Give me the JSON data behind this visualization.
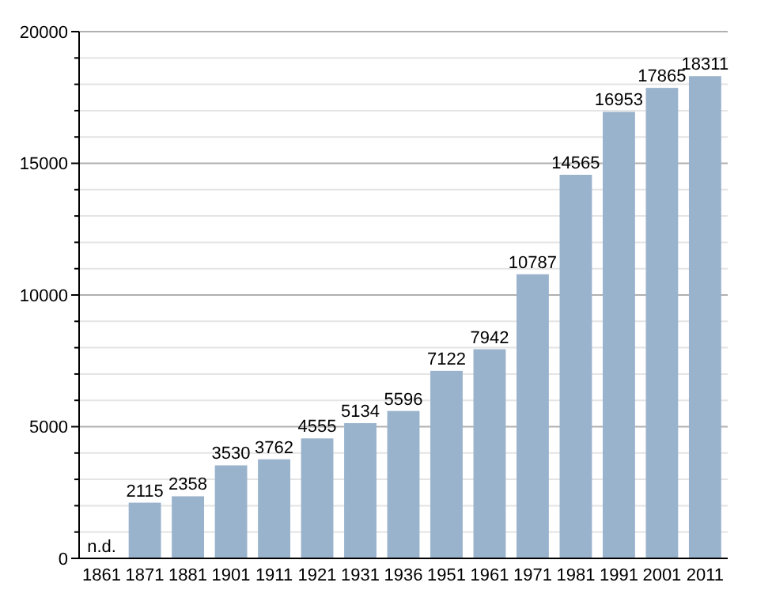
{
  "chart_data": {
    "type": "bar",
    "categories": [
      "1861",
      "1871",
      "1881",
      "1901",
      "1911",
      "1921",
      "1931",
      "1936",
      "1951",
      "1961",
      "1971",
      "1981",
      "1991",
      "2001",
      "2011"
    ],
    "values": [
      null,
      2115,
      2358,
      3530,
      3762,
      4555,
      5134,
      5596,
      7122,
      7942,
      10787,
      14565,
      16953,
      17865,
      18311
    ],
    "value_labels": [
      "n.d.",
      "2115",
      "2358",
      "3530",
      "3762",
      "4555",
      "5134",
      "5596",
      "7122",
      "7942",
      "10787",
      "14565",
      "16953",
      "17865",
      "18311"
    ],
    "color": "#9ab3cd",
    "ylim": [
      0,
      20000
    ],
    "yticks": [
      0,
      {
        "value": 1000,
        "label": null
      },
      {
        "value": 2000,
        "label": null
      },
      {
        "value": 3000,
        "label": null
      },
      {
        "value": 4000,
        "label": null
      },
      5000,
      {
        "value": 6000,
        "label": null
      },
      {
        "value": 7000,
        "label": null
      },
      {
        "value": 8000,
        "label": null
      },
      {
        "value": 9000,
        "label": null
      },
      10000,
      {
        "value": 11000,
        "label": null
      },
      {
        "value": 12000,
        "label": null
      },
      {
        "value": 13000,
        "label": null
      },
      {
        "value": 14000,
        "label": null
      },
      15000,
      {
        "value": 16000,
        "label": null
      },
      {
        "value": 17000,
        "label": null
      },
      {
        "value": 18000,
        "label": null
      },
      {
        "value": 19000,
        "label": null
      },
      20000
    ],
    "grid": true
  }
}
